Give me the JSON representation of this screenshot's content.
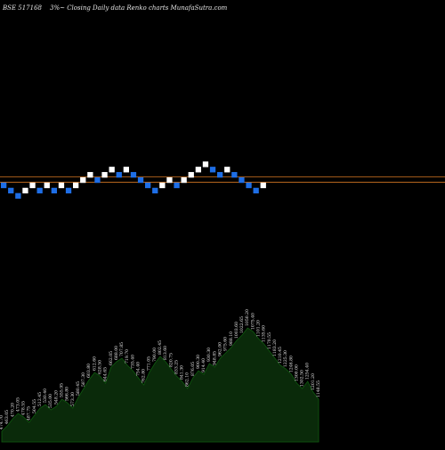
{
  "header": {
    "symbol_line": "BSE 517168",
    "description": "3%~  Closing Daily data  Renko  charts MunafaSutra.com"
  },
  "colors": {
    "background": "#000000",
    "up_brick": "#ffffff",
    "down_brick": "#1e6ee6",
    "reference_line": "#b5651d",
    "volume_fill": "#0a2a0a",
    "volume_outline": "#0f5a0f",
    "text": "#e6e6e6"
  },
  "chart_data": [
    {
      "type": "renko",
      "brick_percent": 3,
      "grid": false,
      "reference_lines": [
        1,
        0
      ],
      "bricks": [
        {
          "level": 0,
          "dir": "down"
        },
        {
          "level": -1,
          "dir": "down"
        },
        {
          "level": -2,
          "dir": "down"
        },
        {
          "level": -1,
          "dir": "up"
        },
        {
          "level": 0,
          "dir": "up"
        },
        {
          "level": -1,
          "dir": "down"
        },
        {
          "level": 0,
          "dir": "up"
        },
        {
          "level": -1,
          "dir": "down"
        },
        {
          "level": 0,
          "dir": "up"
        },
        {
          "level": -1,
          "dir": "down"
        },
        {
          "level": 0,
          "dir": "up"
        },
        {
          "level": 1,
          "dir": "up"
        },
        {
          "level": 2,
          "dir": "up"
        },
        {
          "level": 1,
          "dir": "down"
        },
        {
          "level": 2,
          "dir": "up"
        },
        {
          "level": 3,
          "dir": "up"
        },
        {
          "level": 2,
          "dir": "down"
        },
        {
          "level": 3,
          "dir": "up"
        },
        {
          "level": 2,
          "dir": "down"
        },
        {
          "level": 1,
          "dir": "down"
        },
        {
          "level": 0,
          "dir": "down"
        },
        {
          "level": -1,
          "dir": "down"
        },
        {
          "level": 0,
          "dir": "up"
        },
        {
          "level": 1,
          "dir": "up"
        },
        {
          "level": 0,
          "dir": "down"
        },
        {
          "level": 1,
          "dir": "up"
        },
        {
          "level": 2,
          "dir": "up"
        },
        {
          "level": 3,
          "dir": "up"
        },
        {
          "level": 4,
          "dir": "up"
        },
        {
          "level": 3,
          "dir": "down"
        },
        {
          "level": 2,
          "dir": "down"
        },
        {
          "level": 3,
          "dir": "up"
        },
        {
          "level": 2,
          "dir": "down"
        },
        {
          "level": 1,
          "dir": "down"
        },
        {
          "level": 0,
          "dir": "down"
        },
        {
          "level": -1,
          "dir": "down"
        },
        {
          "level": 0,
          "dir": "up"
        }
      ]
    },
    {
      "type": "area",
      "series": [
        {
          "values": [
            6,
            9,
            13,
            16,
            14,
            11,
            15,
            19,
            21,
            18,
            20,
            24,
            22,
            19,
            25,
            30,
            35,
            39,
            37,
            33,
            42,
            45,
            47,
            43,
            40,
            36,
            32,
            39,
            44,
            48,
            45,
            41,
            37,
            34,
            30,
            36,
            40,
            38,
            44,
            42,
            47,
            50,
            53,
            57,
            60,
            64,
            62,
            58,
            55,
            51,
            47,
            43,
            41,
            38,
            33,
            30,
            34,
            28,
            24
          ]
        }
      ],
      "labels": [
        "474.70",
        "463.05",
        "470.20",
        "473.05",
        "478.55",
        "487.75",
        "504.55",
        "512.45",
        "530.40",
        "535.00",
        "548.20",
        "555.95",
        "566.80",
        "573.30",
        "580.45",
        "587.30",
        "603.80",
        "612.60",
        "628.50",
        "644.65",
        "662.05",
        "688.00",
        "707.85",
        "719.70",
        "735.40",
        "754.40",
        "762.80",
        "771.05",
        "790.00",
        "802.45",
        "813.60",
        "820.75",
        "833.25",
        "841.30",
        "862.10",
        "876.05",
        "900.30",
        "914.40",
        "930.30",
        "948.85",
        "962.00",
        "975.60",
        "988.10",
        "1003.60",
        "1022.65",
        "1050.20",
        "1075.40",
        "1101.20",
        "1135.60",
        "1170.55",
        "1183.20",
        "1210.45",
        "1225.30",
        "1246.80",
        "1300.00",
        "1302.50",
        "1254.40",
        "1201.20",
        "1148.55"
      ]
    }
  ]
}
